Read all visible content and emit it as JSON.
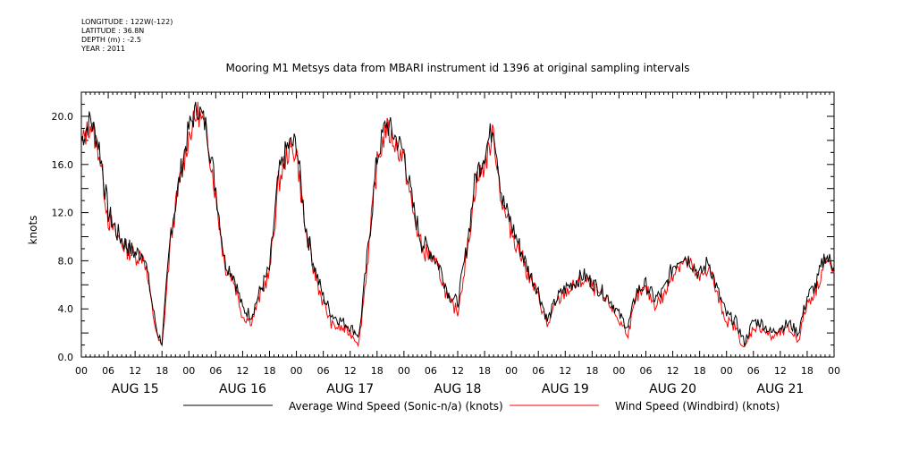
{
  "meta": {
    "longitude": "LONGITUDE : 122W(-122)",
    "latitude": "LATITUDE : 36.8N",
    "depth": "DEPTH (m) : -2.5",
    "year": "YEAR : 2011"
  },
  "chart_data": {
    "type": "line",
    "title": "Mooring M1 Metsys data from MBARI instrument id 1396 at original sampling intervals",
    "ylabel": "knots",
    "xlabel": "",
    "ylim": [
      0,
      20
    ],
    "xlim_hours": [
      0,
      168
    ],
    "ytick_labels": [
      "0.0",
      "4.0",
      "8.0",
      "12.0",
      "16.0",
      "20.0"
    ],
    "ytick_values": [
      0,
      4,
      8,
      12,
      16,
      20
    ],
    "xtick_labels": [
      "00",
      "06",
      "12",
      "18",
      "00",
      "06",
      "12",
      "18",
      "00",
      "06",
      "12",
      "18",
      "00",
      "06",
      "12",
      "18",
      "00",
      "06",
      "12",
      "18",
      "00",
      "06",
      "12",
      "18",
      "00",
      "06",
      "12",
      "18",
      "00"
    ],
    "day_labels": [
      "AUG 15",
      "AUG 16",
      "AUG 17",
      "AUG 18",
      "AUG 19",
      "AUG 20",
      "AUG 21"
    ],
    "x_hours": [
      0,
      2,
      4,
      6,
      8,
      10,
      12,
      14,
      16,
      17,
      18,
      20,
      22,
      24,
      26,
      28,
      30,
      32,
      34,
      36,
      38,
      40,
      42,
      44,
      46,
      48,
      50,
      52,
      54,
      56,
      58,
      60,
      62,
      64,
      66,
      68,
      70,
      72,
      74,
      76,
      78,
      80,
      82,
      84,
      86,
      88,
      90,
      92,
      94,
      96,
      98,
      100,
      102,
      104,
      106,
      108,
      110,
      112,
      114,
      116,
      118,
      120,
      122,
      124,
      126,
      128,
      130,
      132,
      134,
      136,
      138,
      140,
      142,
      144,
      146,
      148,
      150,
      152,
      154,
      156,
      158,
      160,
      162,
      164,
      166,
      168
    ],
    "series": [
      {
        "name": "Average Wind Speed (Sonic-n/a) (knots)",
        "color": "#000000",
        "values": [
          18.0,
          19.8,
          17.5,
          12.0,
          10.3,
          9.3,
          8.6,
          8.7,
          4.0,
          2.0,
          1.2,
          10.5,
          15.0,
          19.0,
          20.8,
          19.0,
          14.0,
          8.0,
          6.8,
          4.0,
          3.5,
          5.6,
          7.3,
          15.0,
          17.5,
          17.8,
          11.0,
          7.5,
          5.0,
          3.5,
          3.0,
          2.5,
          1.8,
          9.0,
          16.5,
          19.5,
          18.3,
          17.0,
          12.5,
          9.5,
          8.8,
          7.5,
          5.2,
          4.5,
          9.0,
          15.0,
          17.0,
          19.3,
          13.0,
          11.0,
          9.0,
          7.0,
          5.5,
          3.0,
          4.8,
          5.7,
          6.2,
          6.8,
          6.2,
          5.5,
          4.8,
          3.5,
          2.5,
          5.5,
          6.0,
          4.8,
          5.5,
          7.5,
          8.5,
          8.0,
          6.8,
          8.0,
          5.5,
          3.5,
          3.0,
          1.2,
          3.0,
          2.8,
          2.0,
          2.5,
          2.8,
          2.0,
          5.0,
          6.0,
          8.5,
          7.5
        ]
      },
      {
        "name": "Wind Speed (Windbird) (knots)",
        "color": "#ff0000",
        "values": [
          17.6,
          19.4,
          17.0,
          11.5,
          10.0,
          9.0,
          8.4,
          8.4,
          3.6,
          1.6,
          0.8,
          10.0,
          14.6,
          18.4,
          20.4,
          18.6,
          13.5,
          7.6,
          6.4,
          3.4,
          3.0,
          5.2,
          7.0,
          14.4,
          17.0,
          17.2,
          10.5,
          7.0,
          4.5,
          2.6,
          2.4,
          2.0,
          1.2,
          8.5,
          16.0,
          19.0,
          17.8,
          16.4,
          12.0,
          9.0,
          8.3,
          7.0,
          4.6,
          3.8,
          8.5,
          14.4,
          16.0,
          18.6,
          12.4,
          10.5,
          8.6,
          6.6,
          5.0,
          2.6,
          4.4,
          5.4,
          5.9,
          6.4,
          5.9,
          5.0,
          4.4,
          3.0,
          2.0,
          5.0,
          5.6,
          4.4,
          5.0,
          7.0,
          8.0,
          7.6,
          6.4,
          7.6,
          5.0,
          3.0,
          2.5,
          0.6,
          2.5,
          2.4,
          1.6,
          2.0,
          2.3,
          1.4,
          4.5,
          5.6,
          8.0,
          7.0
        ]
      }
    ],
    "legend_placement": "bottom",
    "grid": false
  }
}
